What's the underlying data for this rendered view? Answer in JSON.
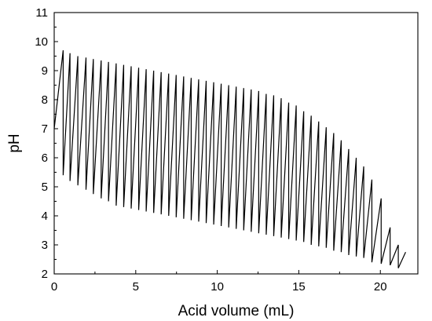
{
  "chart_data": {
    "type": "line",
    "title": "",
    "xlabel": "Acid volume (mL)",
    "ylabel": "pH",
    "xlim": [
      0,
      22.3
    ],
    "ylim": [
      2,
      11
    ],
    "x_ticks": [
      0,
      5,
      10,
      15,
      20
    ],
    "y_ticks": [
      2,
      3,
      4,
      5,
      6,
      7,
      8,
      9,
      10,
      11
    ],
    "x_tick_labels": [
      "0",
      "5",
      "10",
      "15",
      "20"
    ],
    "y_tick_labels": [
      "2",
      "3",
      "4",
      "5",
      "6",
      "7",
      "8",
      "9",
      "10",
      "11"
    ],
    "grid": false,
    "legend": "none",
    "line_color": "#000000",
    "series": [
      {
        "pulse_start_x": [
          0.0,
          0.55,
          0.97,
          1.45,
          1.95,
          2.4,
          2.88,
          3.33,
          3.8,
          4.26,
          4.72,
          5.18,
          5.64,
          6.1,
          6.56,
          7.02,
          7.48,
          7.94,
          8.4,
          8.86,
          9.32,
          9.78,
          10.24,
          10.7,
          11.16,
          11.62,
          12.08,
          12.54,
          13.0,
          13.46,
          13.92,
          14.38,
          14.84,
          15.3,
          15.76,
          16.22,
          16.68,
          17.14,
          17.6,
          18.06,
          18.52,
          18.98,
          19.48,
          20.05,
          20.6,
          21.1
        ],
        "peak_x": [
          0.55,
          0.97,
          1.45,
          1.95,
          2.4,
          2.88,
          3.33,
          3.8,
          4.26,
          4.72,
          5.18,
          5.64,
          6.1,
          6.56,
          7.02,
          7.48,
          7.94,
          8.4,
          8.86,
          9.32,
          9.78,
          10.24,
          10.7,
          11.16,
          11.62,
          12.08,
          12.54,
          13.0,
          13.46,
          13.92,
          14.38,
          14.84,
          15.3,
          15.76,
          16.22,
          16.68,
          17.14,
          17.6,
          18.06,
          18.52,
          18.98,
          19.48,
          20.05,
          20.6,
          21.1,
          21.55
        ],
        "start_y": [
          7.0,
          5.4,
          5.2,
          5.05,
          4.9,
          4.75,
          4.6,
          4.5,
          4.35,
          4.3,
          4.25,
          4.2,
          4.15,
          4.1,
          4.05,
          4.0,
          3.95,
          3.9,
          3.85,
          3.8,
          3.75,
          3.7,
          3.65,
          3.6,
          3.55,
          3.5,
          3.45,
          3.4,
          3.35,
          3.3,
          3.25,
          3.2,
          3.15,
          3.1,
          3.0,
          2.95,
          2.9,
          2.8,
          2.75,
          2.65,
          2.6,
          2.55,
          2.4,
          2.35,
          2.3,
          2.2
        ],
        "peak_y": [
          9.7,
          9.6,
          9.5,
          9.45,
          9.4,
          9.35,
          9.3,
          9.25,
          9.2,
          9.15,
          9.1,
          9.05,
          9.0,
          8.95,
          8.9,
          8.85,
          8.8,
          8.75,
          8.7,
          8.65,
          8.6,
          8.55,
          8.5,
          8.45,
          8.4,
          8.35,
          8.3,
          8.2,
          8.15,
          8.05,
          7.9,
          7.8,
          7.6,
          7.45,
          7.25,
          7.05,
          6.85,
          6.6,
          6.3,
          6.0,
          5.7,
          5.25,
          4.6,
          3.6,
          3.0,
          2.75
        ]
      }
    ]
  }
}
